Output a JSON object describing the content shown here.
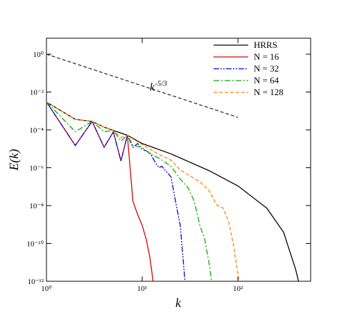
{
  "chart_data": {
    "type": "line",
    "x_label": "k",
    "y_label": "E(k)",
    "log_x": true,
    "log_y": true,
    "xlim": [
      1,
      575
    ],
    "ylim": [
      1e-12,
      7
    ],
    "xticks": [
      {
        "value": 1,
        "label": "10⁰"
      },
      {
        "value": 10,
        "label": "10¹"
      },
      {
        "value": 100,
        "label": "10²"
      }
    ],
    "yticks": [
      {
        "value": 1,
        "label": "10⁰"
      },
      {
        "value": 0.01,
        "label": "10⁻²"
      },
      {
        "value": 0.0001,
        "label": "10⁻⁴"
      },
      {
        "value": 1e-06,
        "label": "10⁻⁶"
      },
      {
        "value": 1e-08,
        "label": "10⁻⁸"
      },
      {
        "value": 1e-10,
        "label": "10⁻¹⁰"
      },
      {
        "value": 1e-12,
        "label": "10⁻¹²"
      }
    ],
    "legend": "upper right",
    "series": [
      {
        "name": "HRRS",
        "color": "#000000",
        "dash": "solid",
        "x": [
          1,
          2,
          3,
          4,
          5,
          7,
          10,
          20,
          50,
          100,
          200,
          300,
          400,
          430
        ],
        "values": [
          0.003,
          0.00036,
          0.00028,
          0.00014,
          9.3e-05,
          5.2e-05,
          1.9e-05,
          5.4e-06,
          7e-07,
          1.1e-07,
          7.4e-09,
          3.9e-10,
          4.4e-12,
          1e-12
        ]
      },
      {
        "name": "N = 16",
        "color": "#d40000",
        "dash": "solid",
        "x": [
          1,
          2,
          3,
          4,
          5,
          6,
          7,
          8,
          9,
          10,
          11,
          12,
          13
        ],
        "values": [
          0.003,
          1.5e-05,
          0.00028,
          1.2e-05,
          7.8e-05,
          2.3e-06,
          5.2e-05,
          1.7e-08,
          3.2e-09,
          9e-10,
          1.7e-10,
          2e-11,
          1e-12
        ]
      },
      {
        "name": "N = 32",
        "color": "#0000d0",
        "dash": "dashdotdot",
        "x": [
          1,
          2,
          3,
          4,
          5,
          6,
          7,
          8,
          9,
          10,
          12,
          14,
          15,
          16,
          20,
          23,
          25,
          27,
          28
        ],
        "values": [
          0.003,
          1.5e-05,
          0.00028,
          1.2e-05,
          7.8e-05,
          2.3e-06,
          5.2e-05,
          1.2e-05,
          1.9e-05,
          9.6e-06,
          6.3e-06,
          1.6e-06,
          1e-06,
          1.2e-06,
          3.3e-07,
          7.4e-09,
          9e-10,
          8.7e-12,
          1e-12
        ]
      },
      {
        "name": "N = 64",
        "color": "#00b000",
        "dash": "dashdot",
        "x": [
          1,
          2,
          3,
          4,
          5,
          6,
          7,
          8,
          10,
          12,
          15,
          20,
          25,
          30,
          35,
          40,
          45,
          50,
          53
        ],
        "values": [
          0.003,
          8e-05,
          0.00028,
          8e-05,
          9.3e-05,
          2.6e-05,
          5.2e-05,
          1.5e-05,
          1.2e-05,
          5.4e-06,
          3.2e-06,
          1.2e-06,
          2.5e-07,
          9.1e-08,
          1.7e-08,
          9e-10,
          1.7e-10,
          8.7e-12,
          1e-12
        ]
      },
      {
        "name": "N = 128",
        "color": "#ff8000",
        "dash": "dashed",
        "x": [
          1,
          2,
          3,
          4,
          5,
          6,
          7,
          10,
          15,
          20,
          25,
          30,
          40,
          50,
          60,
          70,
          80,
          90,
          100,
          103
        ],
        "values": [
          0.003,
          0.00036,
          0.00028,
          0.00014,
          9e-05,
          4e-05,
          5e-05,
          1.7e-05,
          5e-06,
          2.5e-06,
          7.6e-07,
          4.3e-07,
          1.8e-07,
          6e-08,
          1.1e-08,
          7.4e-09,
          1.4e-09,
          8e-11,
          2.5e-12,
          1e-12
        ]
      }
    ],
    "reference_line": {
      "color": "#333333",
      "dash": "dashed",
      "x": [
        1,
        100
      ],
      "values": [
        1,
        0.00046
      ]
    },
    "annotation": {
      "text": "k",
      "exponent": "-5/3",
      "x": 12,
      "y": 0.012
    }
  }
}
